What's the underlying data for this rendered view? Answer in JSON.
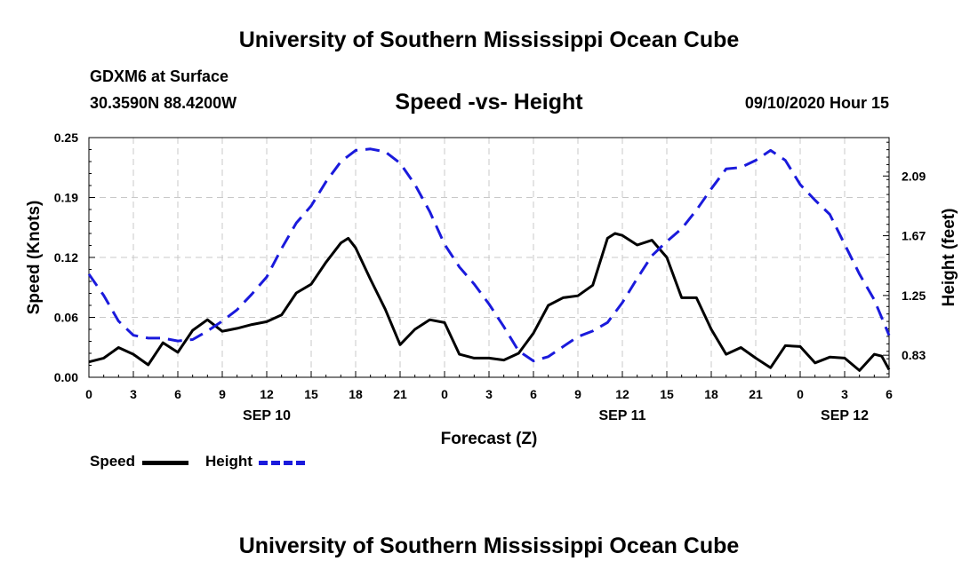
{
  "header": {
    "title": "University of Southern Mississippi Ocean Cube",
    "station": "GDXM6 at Surface",
    "location": "30.3590N 88.4200W",
    "subtitle": "Speed -vs- Height",
    "datetime": "09/10/2020 Hour 15"
  },
  "footer": {
    "title": "University of Southern Mississippi Ocean Cube"
  },
  "legend": {
    "speed_label": "Speed",
    "height_label": "Height",
    "speed_color": "#000000",
    "height_color": "#1a1adc"
  },
  "chart_data": {
    "type": "line",
    "title": "Speed -vs- Height",
    "xlabel": "Forecast (Z)",
    "ylabel": "Speed (Knots)",
    "y2label": "Height (feet)",
    "x_unit": "forecast hours from SEP 10 00Z",
    "xlim": [
      0,
      54
    ],
    "ylim": [
      0,
      0.25
    ],
    "y2lim": [
      0.675,
      2.36
    ],
    "y_ticks": [
      "0.00",
      "0.06",
      "0.12",
      "0.19",
      "0.25"
    ],
    "y2_ticks": [
      "0.83",
      "1.25",
      "1.67",
      "2.09"
    ],
    "x_ticks": [
      0,
      3,
      6,
      9,
      12,
      15,
      18,
      21,
      24,
      27,
      30,
      33,
      36,
      39,
      42,
      45,
      48,
      51,
      54
    ],
    "x_tick_labels": [
      "0",
      "3",
      "6",
      "9",
      "12",
      "15",
      "18",
      "21",
      "0",
      "3",
      "6",
      "9",
      "12",
      "15",
      "18",
      "21",
      "0",
      "3",
      "6"
    ],
    "day_labels": [
      {
        "x": 12,
        "label": "SEP 10"
      },
      {
        "x": 36,
        "label": "SEP 11"
      },
      {
        "x": 51,
        "label": "SEP 12"
      }
    ],
    "grid": true,
    "series": [
      {
        "name": "Speed",
        "axis": "left",
        "color": "#000000",
        "dash": "solid",
        "x": [
          0,
          1,
          2,
          3,
          4,
          5,
          6,
          7,
          8,
          9,
          10,
          11,
          12,
          13,
          14,
          15,
          16,
          17,
          17.5,
          18,
          19,
          20,
          21,
          22,
          23,
          24,
          25,
          26,
          27,
          28,
          29,
          30,
          31,
          32,
          33,
          34,
          35,
          35.5,
          36,
          37,
          38,
          39,
          40,
          41,
          42,
          43,
          44,
          45,
          46,
          47,
          48,
          49,
          50,
          51,
          52,
          53,
          53.5,
          54
        ],
        "values": [
          0.016,
          0.02,
          0.031,
          0.024,
          0.013,
          0.036,
          0.026,
          0.049,
          0.06,
          0.048,
          0.051,
          0.055,
          0.058,
          0.065,
          0.088,
          0.097,
          0.12,
          0.14,
          0.145,
          0.135,
          0.102,
          0.071,
          0.034,
          0.05,
          0.06,
          0.057,
          0.024,
          0.02,
          0.02,
          0.018,
          0.025,
          0.046,
          0.075,
          0.083,
          0.085,
          0.096,
          0.145,
          0.15,
          0.148,
          0.138,
          0.143,
          0.125,
          0.083,
          0.083,
          0.05,
          0.024,
          0.031,
          0.02,
          0.01,
          0.033,
          0.032,
          0.015,
          0.021,
          0.02,
          0.007,
          0.024,
          0.022,
          0.008
        ]
      },
      {
        "name": "Height",
        "axis": "right",
        "color": "#1a1adc",
        "dash": "dashed",
        "x": [
          0,
          1,
          2,
          3,
          4,
          5,
          6,
          7,
          8,
          9,
          10,
          11,
          12,
          13,
          14,
          15,
          16,
          17,
          18,
          19,
          20,
          21,
          22,
          23,
          24,
          25,
          26,
          27,
          28,
          29,
          30,
          31,
          32,
          33,
          34,
          35,
          36,
          37,
          38,
          39,
          40,
          41,
          42,
          43,
          44,
          45,
          46,
          47,
          48,
          49,
          50,
          51,
          52,
          53,
          54
        ],
        "values": [
          1.4,
          1.25,
          1.07,
          0.97,
          0.95,
          0.95,
          0.93,
          0.94,
          1.0,
          1.07,
          1.15,
          1.26,
          1.38,
          1.58,
          1.76,
          1.88,
          2.05,
          2.19,
          2.27,
          2.28,
          2.26,
          2.18,
          2.03,
          1.84,
          1.61,
          1.45,
          1.33,
          1.19,
          1.03,
          0.86,
          0.79,
          0.82,
          0.89,
          0.96,
          1.0,
          1.06,
          1.2,
          1.37,
          1.53,
          1.63,
          1.72,
          1.85,
          2.0,
          2.14,
          2.15,
          2.2,
          2.27,
          2.2,
          2.03,
          1.92,
          1.82,
          1.61,
          1.4,
          1.22,
          0.97
        ]
      }
    ]
  }
}
